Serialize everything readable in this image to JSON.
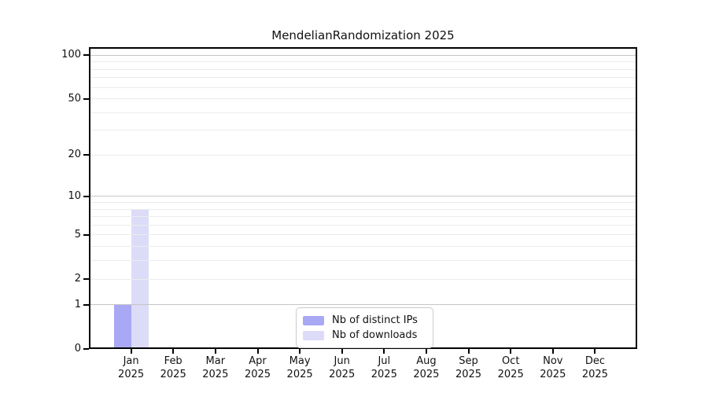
{
  "chart_data": {
    "type": "bar",
    "title": "MendelianRandomization 2025",
    "categories": [
      "Jan 2025",
      "Feb 2025",
      "Mar 2025",
      "Apr 2025",
      "May 2025",
      "Jun 2025",
      "Jul 2025",
      "Aug 2025",
      "Sep 2025",
      "Oct 2025",
      "Nov 2025",
      "Dec 2025"
    ],
    "series": [
      {
        "name": "Nb of distinct IPs",
        "color": "#a8a8f5",
        "values": [
          1,
          0,
          0,
          0,
          0,
          0,
          0,
          0,
          0,
          0,
          0,
          0
        ]
      },
      {
        "name": "Nb of downloads",
        "color": "#dcdcf8",
        "values": [
          8,
          0,
          0,
          0,
          0,
          0,
          0,
          0,
          0,
          0,
          0,
          0
        ]
      }
    ],
    "xlabel": "",
    "ylabel": "",
    "y_scale": "log10(1+x)",
    "y_tick_labels": [
      0,
      1,
      2,
      5,
      10,
      20,
      50,
      100
    ],
    "y_major_gridlines": [
      1,
      10,
      100
    ],
    "y_minor_gridlines": [
      2,
      3,
      4,
      5,
      6,
      7,
      8,
      9,
      20,
      30,
      40,
      50,
      60,
      70,
      80,
      90
    ],
    "ylim": [
      0,
      113
    ],
    "grid": true,
    "legend_position": "lower center"
  },
  "colors": {
    "bar_distinct_ips": "#a8a8f5",
    "bar_downloads": "#dcdcf8",
    "major_grid": "#c6c6c6",
    "minor_grid": "#ececec",
    "axis": "#000000",
    "text": "#111111",
    "background": "#ffffff"
  }
}
